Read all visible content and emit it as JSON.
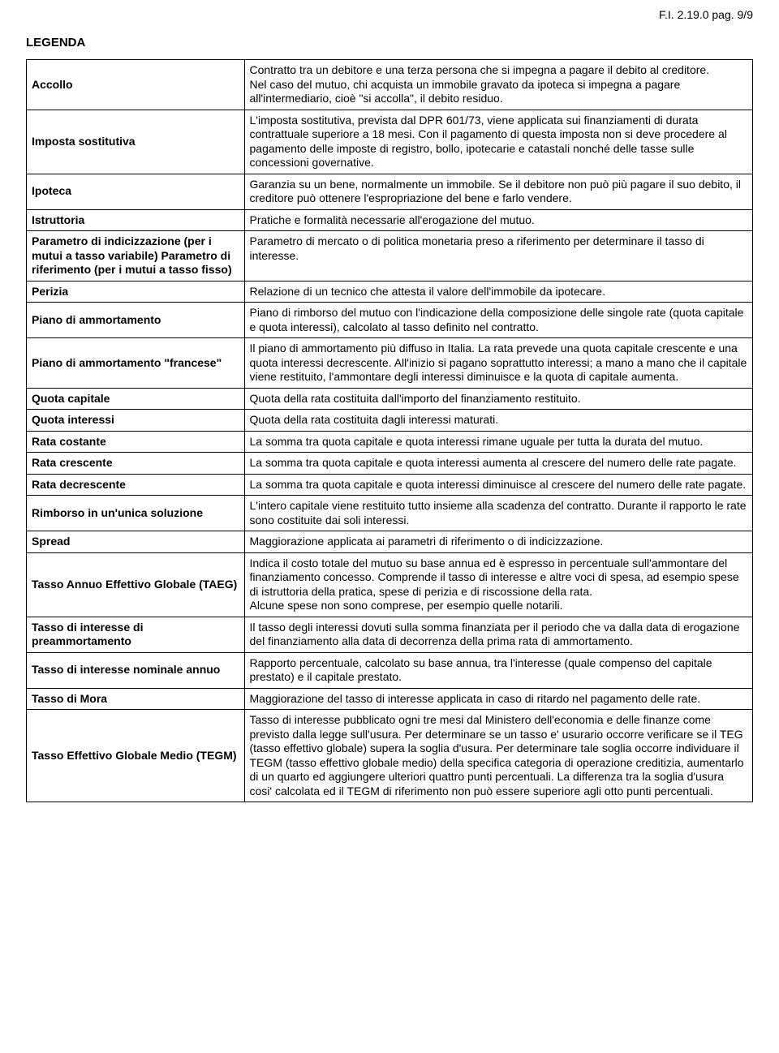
{
  "page_number": "F.I. 2.19.0 pag. 9/9",
  "legend_title": "LEGENDA",
  "rows": [
    {
      "term": "Accollo",
      "def": "Contratto tra un debitore e una terza persona che si impegna a pagare il debito al creditore.\nNel caso del mutuo, chi acquista un immobile gravato da ipoteca si impegna a pagare all'intermediario, cioè \"si accolla\", il debito residuo."
    },
    {
      "term": "Imposta sostitutiva",
      "def": "L'imposta sostitutiva, prevista dal DPR 601/73, viene applicata sui finanziamenti di durata contrattuale superiore a 18 mesi. Con il pagamento di questa imposta non si deve procedere al pagamento delle imposte di registro, bollo, ipotecarie e catastali nonché delle tasse sulle concessioni governative."
    },
    {
      "term": "Ipoteca",
      "def": "Garanzia su un bene, normalmente un immobile. Se il debitore non può più pagare il suo debito, il creditore può ottenere l'espropriazione del bene e farlo vendere."
    },
    {
      "term": "Istruttoria",
      "def": "Pratiche e formalità necessarie all'erogazione del mutuo."
    },
    {
      "term": "Parametro di indicizzazione (per i mutui a tasso variabile) Parametro di riferimento (per i mutui a tasso fisso)",
      "def": "Parametro di mercato o di politica monetaria preso a riferimento per determinare il tasso di interesse."
    },
    {
      "term": "Perizia",
      "def": "Relazione di un tecnico che attesta il valore dell'immobile da ipotecare."
    },
    {
      "term": "Piano di ammortamento",
      "def": "Piano di rimborso del mutuo con l'indicazione della composizione delle singole rate (quota capitale e quota interessi), calcolato al tasso definito nel contratto."
    },
    {
      "term": "Piano di ammortamento \"francese\"",
      "def": "Il piano di ammortamento più diffuso in Italia. La rata prevede una quota capitale crescente e una quota interessi decrescente. All'inizio si pagano soprattutto interessi; a mano a mano che il capitale viene restituito, l'ammontare degli interessi diminuisce e la quota di capitale aumenta."
    },
    {
      "term": "Quota capitale",
      "def": "Quota della rata costituita dall'importo del finanziamento restituito."
    },
    {
      "term": "Quota interessi",
      "def": "Quota della rata costituita dagli interessi maturati."
    },
    {
      "term": "Rata costante",
      "def": "La somma tra quota capitale e quota interessi rimane uguale per tutta la durata del mutuo."
    },
    {
      "term": "Rata crescente",
      "def": "La somma tra quota capitale e quota interessi aumenta al crescere del numero delle rate pagate."
    },
    {
      "term": "Rata decrescente",
      "def": "La somma tra quota capitale e quota interessi diminuisce al crescere del numero delle rate pagate."
    },
    {
      "term": "Rimborso in un'unica soluzione",
      "def": "L'intero capitale viene restituito tutto insieme alla scadenza del contratto. Durante il rapporto le rate sono costituite dai soli interessi."
    },
    {
      "term": "Spread",
      "def": "Maggiorazione applicata ai parametri di riferimento o di indicizzazione."
    },
    {
      "term": "Tasso Annuo Effettivo Globale (TAEG)",
      "def": "Indica il costo totale del mutuo su base annua ed è espresso in percentuale sull'ammontare del finanziamento concesso. Comprende il tasso di interesse e altre voci di spesa, ad esempio spese di istruttoria della pratica, spese di perizia  e di riscossione della rata.\nAlcune spese non sono comprese, per esempio quelle notarili."
    },
    {
      "term": "Tasso di interesse di preammortamento",
      "def": "Il tasso degli interessi dovuti sulla somma finanziata per il periodo che va dalla data di erogazione del finanziamento alla data di decorrenza della prima rata di ammortamento."
    },
    {
      "term": "Tasso di interesse nominale annuo",
      "def": "Rapporto percentuale, calcolato su base annua, tra l'interesse (quale compenso del capitale prestato) e il capitale prestato."
    },
    {
      "term": "Tasso di Mora",
      "def": "Maggiorazione del tasso di interesse applicata in caso di ritardo nel pagamento delle rate."
    },
    {
      "term": "Tasso Effettivo Globale Medio (TEGM)",
      "def": "Tasso di interesse pubblicato ogni tre mesi dal Ministero dell'economia e delle finanze come previsto dalla legge sull'usura. Per  determinare se un tasso e' usurario occorre verificare se il TEG  (tasso effettivo globale) supera la soglia d'usura. Per determinare  tale soglia  occorre individuare il TEGM (tasso effettivo globale medio)  della specifica categoria di operazione creditizia, aumentarlo di un quarto ed  aggiungere ulteriori quattro punti percentuali. La  differenza tra la soglia d'usura  cosi' calcolata  ed il  TEGM di riferimento non può essere superiore agli otto punti percentuali."
    }
  ]
}
